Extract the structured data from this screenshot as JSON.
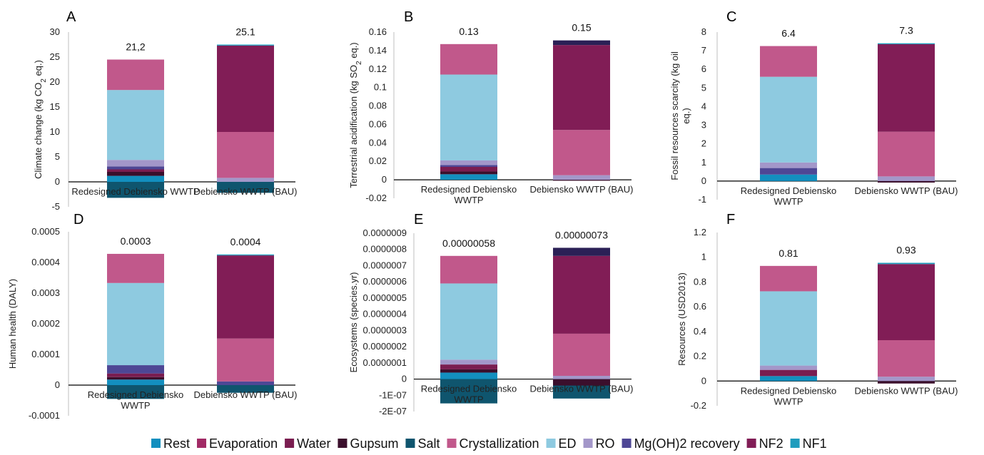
{
  "colors": {
    "Rest": "#138fbf",
    "Evaporation": "#a12a65",
    "Water": "#7a1d50",
    "Gupsum": "#3b0f2c",
    "Salt": "#0f556e",
    "Crystallization": "#c1588b",
    "ED": "#8ecae0",
    "RO": "#a397c9",
    "Mg(OH)2 recovery": "#4e4795",
    "NF2": "#811d56",
    "NF1": "#1f9cbd",
    "top_dark": "#2b2056"
  },
  "legend": [
    "Rest",
    "Evaporation",
    "Water",
    "Gupsum",
    "Salt",
    "Crystallization",
    "ED",
    "RO",
    "Mg(OH)2 recovery",
    "NF2",
    "NF1"
  ],
  "chart_data": [
    {
      "panel": "A",
      "type": "bar",
      "stacked": true,
      "ylabel_main": "Climate change (kg CO",
      "ylabel_sub": "2",
      "ylabel_end": " eq.)",
      "ylim": [
        -5,
        30
      ],
      "yticks": [
        "-5",
        "0",
        "5",
        "10",
        "15",
        "20",
        "25",
        "30"
      ],
      "ytick_values": [
        -5,
        0,
        5,
        10,
        15,
        20,
        25,
        30
      ],
      "categories": [
        [
          "Redesigned Debiensko WWTP"
        ],
        [
          "Debiensko WWTP (BAU)"
        ]
      ],
      "totals": [
        "21,2",
        "25.1"
      ],
      "stacks": [
        [
          [
            "Salt",
            -3.2,
            0
          ],
          [
            "Rest",
            0,
            1.2
          ],
          [
            "Gupsum",
            1.2,
            2.0
          ],
          [
            "Water",
            2.0,
            2.5
          ],
          [
            "Mg(OH)2 recovery",
            2.5,
            3.1
          ],
          [
            "RO",
            3.1,
            4.4
          ],
          [
            "ED",
            4.4,
            18.4
          ],
          [
            "Crystallization",
            18.4,
            24.5
          ]
        ],
        [
          [
            "Salt",
            -2.2,
            0
          ],
          [
            "RO",
            0,
            0.8
          ],
          [
            "Crystallization",
            0.8,
            10.0
          ],
          [
            "NF2",
            10.0,
            27.3
          ],
          [
            "NF1",
            27.3,
            27.5
          ]
        ]
      ]
    },
    {
      "panel": "B",
      "type": "bar",
      "stacked": true,
      "ylabel_main": "Terrestrial acidification (kg SO",
      "ylabel_sub": "2",
      "ylabel_end": " eq.)",
      "ylim": [
        -0.02,
        0.16
      ],
      "yticks": [
        "-0.02",
        "0",
        "0.02",
        "0.04",
        "0.06",
        "0.08",
        "0.1",
        "0.12",
        "0.14",
        "0.16"
      ],
      "ytick_values": [
        -0.02,
        0,
        0.02,
        0.04,
        0.06,
        0.08,
        0.1,
        0.12,
        0.14,
        0.16
      ],
      "categories": [
        [
          "Redesigned Debiensko",
          "WWTP"
        ],
        [
          "Debiensko WWTP (BAU)"
        ]
      ],
      "totals": [
        "0.13",
        "0.15"
      ],
      "stacks": [
        [
          [
            "Rest",
            0,
            0.006
          ],
          [
            "Gupsum",
            0.006,
            0.009
          ],
          [
            "Water",
            0.009,
            0.014
          ],
          [
            "Mg(OH)2 recovery",
            0.014,
            0.016
          ],
          [
            "RO",
            0.016,
            0.021
          ],
          [
            "ED",
            0.021,
            0.114
          ],
          [
            "Crystallization",
            0.114,
            0.147
          ]
        ],
        [
          [
            "Gupsum",
            -0.001,
            0
          ],
          [
            "RO",
            0,
            0.005
          ],
          [
            "Crystallization",
            0.005,
            0.054
          ],
          [
            "NF2",
            0.054,
            0.146
          ],
          [
            "top_dark",
            0.146,
            0.151
          ]
        ]
      ]
    },
    {
      "panel": "C",
      "type": "bar",
      "stacked": true,
      "ylabel_main": "Fossil resources scarcity (kg oil",
      "ylabel_line2": "eq.)",
      "ylim": [
        -1,
        8
      ],
      "yticks": [
        "-1",
        "0",
        "1",
        "2",
        "3",
        "4",
        "5",
        "6",
        "7",
        "8"
      ],
      "ytick_values": [
        -1,
        0,
        1,
        2,
        3,
        4,
        5,
        6,
        7,
        8
      ],
      "categories": [
        [
          "Redesigned Debiensko",
          "WWTP"
        ],
        [
          "Debiensko WWTP (BAU)"
        ]
      ],
      "totals": [
        "6.4",
        "7.3"
      ],
      "stacks": [
        [
          [
            "Rest",
            0,
            0.35
          ],
          [
            "Mg(OH)2 recovery",
            0.35,
            0.7
          ],
          [
            "RO",
            0.7,
            1.0
          ],
          [
            "ED",
            1.0,
            5.6
          ],
          [
            "Crystallization",
            5.6,
            7.25
          ]
        ],
        [
          [
            "Gupsum",
            -0.08,
            0
          ],
          [
            "RO",
            0,
            0.25
          ],
          [
            "Crystallization",
            0.25,
            2.65
          ],
          [
            "NF2",
            2.65,
            7.35
          ],
          [
            "NF1",
            7.35,
            7.4
          ]
        ]
      ]
    },
    {
      "panel": "D",
      "type": "bar",
      "stacked": true,
      "ylabel_main": "Human health (DALY)",
      "ylim": [
        -0.0001,
        0.0005
      ],
      "yticks": [
        "-0.0001",
        "0",
        "0.0001",
        "0.0002",
        "0.0003",
        "0.0004",
        "0.0005"
      ],
      "ytick_values": [
        -0.0001,
        0,
        0.0001,
        0.0002,
        0.0003,
        0.0004,
        0.0005
      ],
      "categories": [
        [
          "Redesigned Debiensko",
          "WWTP"
        ],
        [
          "Debiensko WWTP (BAU)"
        ]
      ],
      "totals": [
        "0.0003",
        "0.0004"
      ],
      "stacks": [
        [
          [
            "Salt",
            -4.5e-05,
            0
          ],
          [
            "Rest",
            0,
            1.8e-05
          ],
          [
            "Gupsum",
            1.8e-05,
            2.6e-05
          ],
          [
            "Water",
            2.6e-05,
            3.8e-05
          ],
          [
            "Mg(OH)2 recovery",
            3.8e-05,
            6.5e-05
          ],
          [
            "ED",
            6.5e-05,
            0.000333
          ],
          [
            "Crystallization",
            0.000333,
            0.000428
          ]
        ],
        [
          [
            "Salt",
            -2.5e-05,
            0
          ],
          [
            "Mg(OH)2 recovery",
            0,
            1.2e-05
          ],
          [
            "Crystallization",
            1.2e-05,
            0.000152
          ],
          [
            "NF2",
            0.000152,
            0.000423
          ],
          [
            "NF1",
            0.000423,
            0.000426
          ]
        ]
      ]
    },
    {
      "panel": "E",
      "type": "bar",
      "stacked": true,
      "ylabel_main": "Ecosystems (species.yr)",
      "ylim": [
        -2e-07,
        9e-07
      ],
      "yticks": [
        "-2E-07",
        "-1E-07",
        "0",
        "0.0000001",
        "0.0000002",
        "0.0000003",
        "0.0000004",
        "0.0000005",
        "0.0000006",
        "0.0000007",
        "0.0000008",
        "0.0000009"
      ],
      "ytick_values": [
        -2e-07,
        -1e-07,
        0,
        1e-07,
        2e-07,
        3e-07,
        4e-07,
        5e-07,
        6e-07,
        7e-07,
        8e-07,
        9e-07
      ],
      "categories": [
        [
          "Redesigned Debiensko",
          "WWTP"
        ],
        [
          "Debiensko WWTP (BAU)"
        ]
      ],
      "totals": [
        "0.00000058",
        "0.00000073"
      ],
      "stacks": [
        [
          [
            "Salt",
            -1.5e-07,
            0
          ],
          [
            "Rest",
            0,
            4e-08
          ],
          [
            "Gupsum",
            4e-08,
            6e-08
          ],
          [
            "Water",
            6e-08,
            9e-08
          ],
          [
            "RO",
            9e-08,
            1.2e-07
          ],
          [
            "ED",
            1.2e-07,
            5.9e-07
          ],
          [
            "Crystallization",
            5.9e-07,
            7.6e-07
          ]
        ],
        [
          [
            "Salt",
            -1.2e-07,
            0
          ],
          [
            "Gupsum",
            -4e-08,
            0
          ],
          [
            "RO",
            0,
            2e-08
          ],
          [
            "Crystallization",
            2e-08,
            2.8e-07
          ],
          [
            "NF2",
            2.8e-07,
            7.6e-07
          ],
          [
            "top_dark",
            7.6e-07,
            8.1e-07
          ]
        ]
      ]
    },
    {
      "panel": "F",
      "type": "bar",
      "stacked": true,
      "ylabel_main": "Resources (USD2013)",
      "ylim": [
        -0.2,
        1.2
      ],
      "yticks": [
        "-0.2",
        "0",
        "0.2",
        "0.4",
        "0.6",
        "0.8",
        "1",
        "1.2"
      ],
      "ytick_values": [
        -0.2,
        0,
        0.2,
        0.4,
        0.6,
        0.8,
        1,
        1.2
      ],
      "categories": [
        [
          "Redesigned Debiensko",
          "WWTP"
        ],
        [
          "Debiensko WWTP (BAU)"
        ]
      ],
      "totals": [
        "0.81",
        "0.93"
      ],
      "stacks": [
        [
          [
            "Rest",
            0,
            0.04
          ],
          [
            "Water",
            0.04,
            0.09
          ],
          [
            "RO",
            0.09,
            0.125
          ],
          [
            "ED",
            0.125,
            0.725
          ],
          [
            "Crystallization",
            0.725,
            0.93
          ]
        ],
        [
          [
            "Gupsum",
            -0.02,
            0
          ],
          [
            "RO",
            0,
            0.035
          ],
          [
            "Crystallization",
            0.035,
            0.33
          ],
          [
            "NF2",
            0.33,
            0.945
          ],
          [
            "NF1",
            0.945,
            0.955
          ]
        ]
      ]
    }
  ]
}
